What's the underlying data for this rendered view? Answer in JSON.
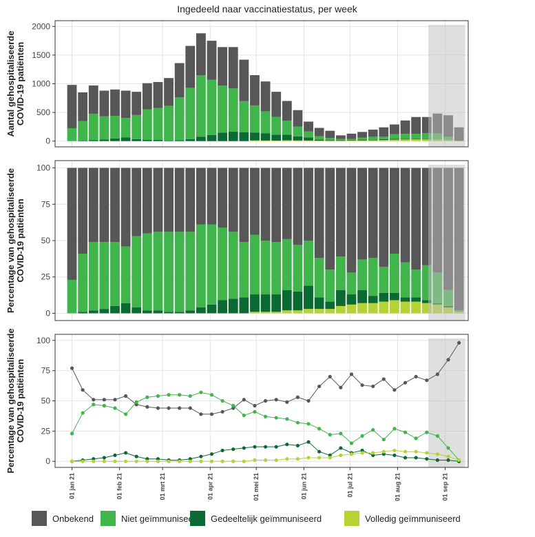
{
  "chart_data": [
    {
      "type": "stacked-bar",
      "title": "Ingedeeld naar vaccinatiestatus, per week",
      "ylabel": [
        "Aantal gehospitaliseerde",
        "COVID-19 patiënten"
      ],
      "x": [
        0,
        7,
        14,
        21,
        28,
        35,
        42,
        49,
        56,
        63,
        70,
        77,
        84,
        91,
        98,
        105,
        112,
        119,
        126,
        133,
        140,
        147,
        154,
        161,
        168,
        175,
        182,
        189,
        196,
        203,
        210,
        217,
        224,
        231,
        238,
        245,
        252
      ],
      "xlim": [
        -11,
        258
      ],
      "xticks": [
        0,
        31,
        59,
        90,
        120,
        151,
        181,
        212,
        243
      ],
      "ylim": [
        -100,
        2100
      ],
      "yticks": [
        0,
        500,
        1000,
        1500,
        2000
      ],
      "grid": true,
      "highlight": [
        232,
        256
      ],
      "series": [
        {
          "color": "#575757",
          "values": [
            755,
            501,
            495,
            449,
            459,
            475,
            405,
            455,
            453,
            484,
            598,
            731,
            733,
            682,
            672,
            722,
            724,
            528,
            520,
            438,
            343,
            286,
            171,
            143,
            126,
            61,
            93,
            101,
            124,
            164,
            171,
            234,
            293,
            282,
            345,
            377,
            236
          ]
        },
        {
          "color": "#3fb54b",
          "values": [
            225,
            340,
            456,
            405,
            396,
            343,
            421,
            535,
            556,
            605,
            748,
            896,
            1072,
            963,
            820,
            754,
            540,
            472,
            385,
            310,
            245,
            173,
            105,
            62,
            40,
            23,
            20,
            34,
            52,
            43,
            78,
            86,
            80,
            101,
            101,
            50,
            2
          ]
        },
        {
          "color": "#0b6a33",
          "values": [
            0,
            9,
            19,
            26,
            45,
            62,
            34,
            20,
            21,
            11,
            14,
            33,
            75,
            105,
            148,
            164,
            156,
            138,
            125,
            103,
            98,
            70,
            54,
            18,
            9,
            11,
            9,
            14,
            10,
            14,
            15,
            11,
            13,
            8,
            5,
            5,
            0
          ]
        },
        {
          "color": "#b4d334",
          "values": [
            0,
            0,
            0,
            0,
            0,
            0,
            0,
            0,
            0,
            0,
            0,
            0,
            0,
            0,
            0,
            0,
            0,
            12,
            10,
            9,
            14,
            11,
            10,
            7,
            5,
            5,
            8,
            11,
            14,
            19,
            26,
            29,
            34,
            29,
            29,
            18,
            2
          ]
        }
      ]
    },
    {
      "type": "stacked-bar",
      "ylabel": [
        "Percentage van gehospitaliseerde",
        "COVID-19 patiënten"
      ],
      "x": [
        0,
        7,
        14,
        21,
        28,
        35,
        42,
        49,
        56,
        63,
        70,
        77,
        84,
        91,
        98,
        105,
        112,
        119,
        126,
        133,
        140,
        147,
        154,
        161,
        168,
        175,
        182,
        189,
        196,
        203,
        210,
        217,
        224,
        231,
        238,
        245,
        252
      ],
      "xlim": [
        -11,
        258
      ],
      "xticks": [
        0,
        31,
        59,
        90,
        120,
        151,
        181,
        212,
        243
      ],
      "ylim": [
        -5,
        105
      ],
      "yticks": [
        0,
        25,
        50,
        75,
        100
      ],
      "grid": true,
      "highlight": [
        232,
        256
      ],
      "series": [
        {
          "color": "#575757",
          "values": [
            77,
            59,
            51,
            51,
            51,
            54,
            47,
            45,
            44,
            44,
            44,
            44,
            39,
            39,
            41,
            44,
            51,
            46,
            50,
            51,
            49,
            53,
            50,
            62,
            70,
            61,
            72,
            63,
            62,
            68,
            59,
            65,
            70,
            67,
            72,
            84,
            98
          ]
        },
        {
          "color": "#3fb54b",
          "values": [
            23,
            40,
            47,
            46,
            44,
            39,
            49,
            53,
            54,
            55,
            55,
            54,
            57,
            55,
            50,
            46,
            38,
            41,
            37,
            36,
            35,
            32,
            31,
            27,
            22,
            23,
            15,
            21,
            26,
            18,
            27,
            24,
            19,
            24,
            21,
            11,
            1
          ]
        },
        {
          "color": "#0b6a33",
          "values": [
            0,
            1,
            2,
            3,
            5,
            7,
            4,
            2,
            2,
            1,
            1,
            2,
            4,
            6,
            9,
            10,
            11,
            12,
            12,
            12,
            14,
            13,
            16,
            8,
            5,
            11,
            7,
            9,
            5,
            6,
            5,
            3,
            3,
            2,
            1,
            1,
            0
          ]
        },
        {
          "color": "#b4d334",
          "values": [
            0,
            0,
            0,
            0,
            0,
            0,
            0,
            0,
            0,
            0,
            0,
            0,
            0,
            0,
            0,
            0,
            0,
            1,
            1,
            1,
            2,
            2,
            3,
            3,
            3,
            5,
            6,
            7,
            7,
            8,
            9,
            8,
            8,
            7,
            6,
            4,
            1
          ]
        }
      ]
    },
    {
      "type": "line",
      "ylabel": [
        "Percentage van gehospitaliseerde",
        "COVID-19 patiënten"
      ],
      "x": [
        0,
        7,
        14,
        21,
        28,
        35,
        42,
        49,
        56,
        63,
        70,
        77,
        84,
        91,
        98,
        105,
        112,
        119,
        126,
        133,
        140,
        147,
        154,
        161,
        168,
        175,
        182,
        189,
        196,
        203,
        210,
        217,
        224,
        231,
        238,
        245,
        252
      ],
      "xlim": [
        -11,
        258
      ],
      "xticks": [
        {
          "value": 0,
          "label": "01 jan 21"
        },
        {
          "value": 31,
          "label": "01 feb 21"
        },
        {
          "value": 59,
          "label": "01 mrt 21"
        },
        {
          "value": 90,
          "label": "01 apr 21"
        },
        {
          "value": 120,
          "label": "01 mei 21"
        },
        {
          "value": 151,
          "label": "01 jun 21"
        },
        {
          "value": 181,
          "label": "01 jul 21"
        },
        {
          "value": 212,
          "label": "01 aug 21"
        },
        {
          "value": 243,
          "label": "01 sep 21"
        }
      ],
      "ylim": [
        -5,
        105
      ],
      "yticks": [
        0,
        25,
        50,
        75,
        100
      ],
      "grid": true,
      "highlight": [
        232,
        256
      ],
      "series": [
        {
          "name": "Onbekend",
          "color": "#575757",
          "values": [
            77,
            59,
            51,
            51,
            51,
            54,
            47,
            45,
            44,
            44,
            44,
            44,
            39,
            39,
            41,
            44,
            51,
            46,
            50,
            51,
            49,
            53,
            50,
            62,
            70,
            61,
            72,
            63,
            62,
            68,
            59,
            65,
            70,
            67,
            72,
            84,
            98
          ]
        },
        {
          "name": "Niet geïmmuniseerd",
          "color": "#3fb54b",
          "values": [
            23,
            40,
            47,
            46,
            44,
            39,
            49,
            53,
            54,
            55,
            55,
            54,
            57,
            55,
            50,
            46,
            38,
            41,
            37,
            36,
            35,
            32,
            31,
            27,
            22,
            23,
            15,
            21,
            26,
            18,
            27,
            24,
            19,
            24,
            21,
            11,
            1
          ]
        },
        {
          "name": "Gedeeltelijk geïmmuniseerd",
          "color": "#0b6a33",
          "values": [
            0,
            1,
            2,
            3,
            5,
            7,
            4,
            2,
            2,
            1,
            1,
            2,
            4,
            6,
            9,
            10,
            11,
            12,
            12,
            12,
            14,
            13,
            16,
            8,
            5,
            11,
            7,
            9,
            5,
            6,
            5,
            3,
            3,
            2,
            1,
            1,
            0
          ]
        },
        {
          "name": "Volledig geïmmuniseerd",
          "color": "#b4d334",
          "values": [
            0,
            0,
            0,
            0,
            0,
            0,
            0,
            0,
            0,
            0,
            0,
            0,
            0,
            0,
            0,
            0,
            0,
            1,
            1,
            1,
            2,
            2,
            3,
            3,
            3,
            5,
            6,
            7,
            7,
            8,
            9,
            8,
            8,
            7,
            6,
            4,
            1
          ]
        }
      ]
    }
  ]
}
